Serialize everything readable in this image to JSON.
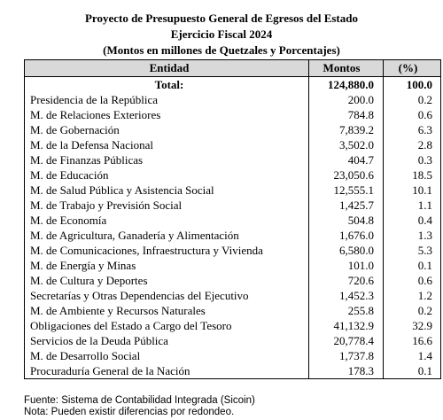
{
  "title": "Proyecto de Presupuesto General de Egresos del Estado",
  "subtitle": "Ejercicio Fiscal 2024",
  "units": "(Montos en millones de Quetzales y Porcentajes)",
  "headers": {
    "entity": "Entidad",
    "amount": "Montos",
    "percent": "(%)"
  },
  "total": {
    "label": "Total:",
    "amount": "124,880.0",
    "percent": "100.0"
  },
  "rows": [
    {
      "entity": "Presidencia de la República",
      "amount": "200.0",
      "percent": "0.2"
    },
    {
      "entity": "M. de Relaciones Exteriores",
      "amount": "784.8",
      "percent": "0.6"
    },
    {
      "entity": "M. de Gobernación",
      "amount": "7,839.2",
      "percent": "6.3"
    },
    {
      "entity": "M. de la Defensa Nacional",
      "amount": "3,502.0",
      "percent": "2.8"
    },
    {
      "entity": "M. de Finanzas Públicas",
      "amount": "404.7",
      "percent": "0.3"
    },
    {
      "entity": "M. de Educación",
      "amount": "23,050.6",
      "percent": "18.5"
    },
    {
      "entity": "M. de Salud Pública y Asistencia Social",
      "amount": "12,555.1",
      "percent": "10.1"
    },
    {
      "entity": "M. de Trabajo y Previsión Social",
      "amount": "1,425.7",
      "percent": "1.1"
    },
    {
      "entity": "M. de Economía",
      "amount": "504.8",
      "percent": "0.4"
    },
    {
      "entity": "M. de Agricultura, Ganadería y Alimentación",
      "amount": "1,676.0",
      "percent": "1.3"
    },
    {
      "entity": "M. de Comunicaciones, Infraestructura y Vivienda",
      "amount": "6,580.0",
      "percent": "5.3"
    },
    {
      "entity": "M. de Energía y Minas",
      "amount": "101.0",
      "percent": "0.1"
    },
    {
      "entity": "M. de Cultura y Deportes",
      "amount": "720.6",
      "percent": "0.6"
    },
    {
      "entity": "Secretarías y Otras Dependencias del Ejecutivo",
      "amount": "1,452.3",
      "percent": "1.2"
    },
    {
      "entity": "M. de Ambiente y Recursos Naturales",
      "amount": "255.8",
      "percent": "0.2"
    },
    {
      "entity": "Obligaciones del Estado a Cargo del Tesoro",
      "amount": "41,132.9",
      "percent": "32.9"
    },
    {
      "entity": "Servicios de la Deuda Pública",
      "amount": "20,778.4",
      "percent": "16.6"
    },
    {
      "entity": "M. de Desarrollo Social",
      "amount": "1,737.8",
      "percent": "1.4"
    },
    {
      "entity": "Procuraduría General de la Nación",
      "amount": "178.3",
      "percent": "0.1"
    }
  ],
  "notes": {
    "source": "Fuente: Sistema de Contabilidad Integrada (Sicoin)",
    "note": "Nota: Pueden existir diferencias por redondeo."
  }
}
